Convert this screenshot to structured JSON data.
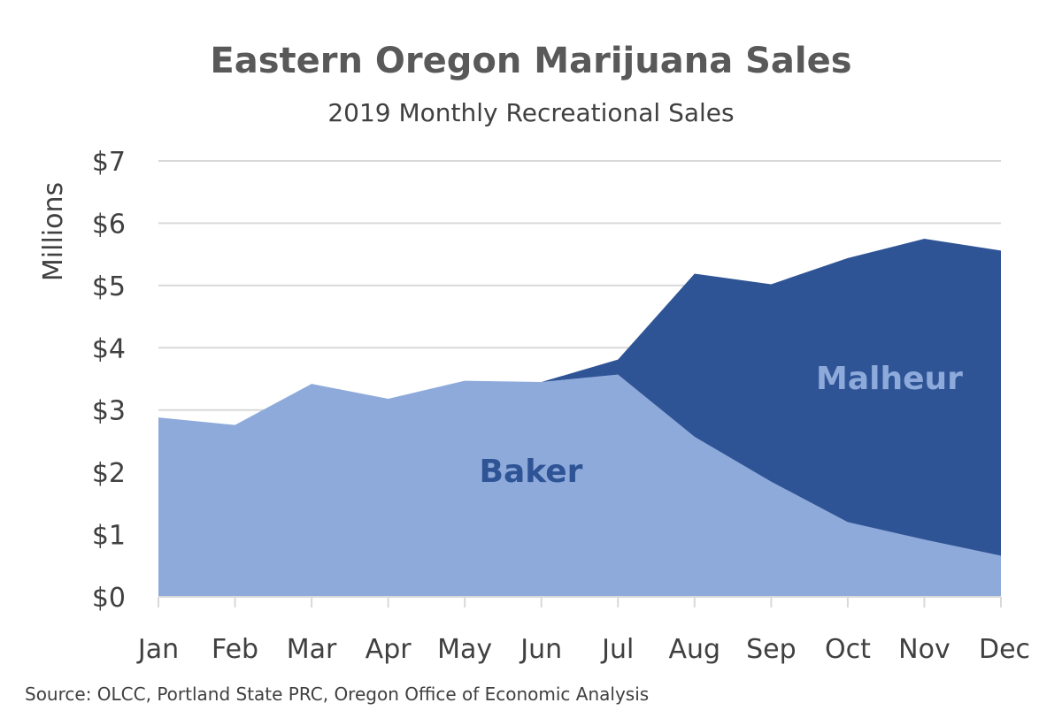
{
  "chart_data": {
    "type": "area",
    "stacked": true,
    "title": "Eastern Oregon Marijuana Sales",
    "subtitle": "2019 Monthly Recreational Sales",
    "ylabel": "Millions",
    "xlabel": "",
    "categories": [
      "Jan",
      "Feb",
      "Mar",
      "Apr",
      "May",
      "Jun",
      "Jul",
      "Aug",
      "Sep",
      "Oct",
      "Nov",
      "Dec"
    ],
    "ylim": [
      0,
      7
    ],
    "yticks": [
      {
        "value": 0,
        "label": "$0"
      },
      {
        "value": 1,
        "label": "$1"
      },
      {
        "value": 2,
        "label": "$2"
      },
      {
        "value": 3,
        "label": "$3"
      },
      {
        "value": 4,
        "label": "$4"
      },
      {
        "value": 5,
        "label": "$5"
      },
      {
        "value": 6,
        "label": "$6"
      },
      {
        "value": 7,
        "label": "$7"
      }
    ],
    "grid": true,
    "series": [
      {
        "name": "Baker",
        "color": "#8eaadb",
        "label_color": "#2f5496",
        "values": [
          2.88,
          2.76,
          3.42,
          3.18,
          3.47,
          3.45,
          3.57,
          2.57,
          1.85,
          1.2,
          0.92,
          0.66
        ]
      },
      {
        "name": "Malheur",
        "color": "#2f5496",
        "label_color": "#8eaadb",
        "values": [
          0,
          0,
          0,
          0,
          0,
          0,
          0.24,
          2.62,
          3.17,
          4.24,
          4.83,
          4.9
        ]
      }
    ],
    "source": "Source: OLCC, Portland State PRC, Oregon Office of Economic Analysis"
  }
}
